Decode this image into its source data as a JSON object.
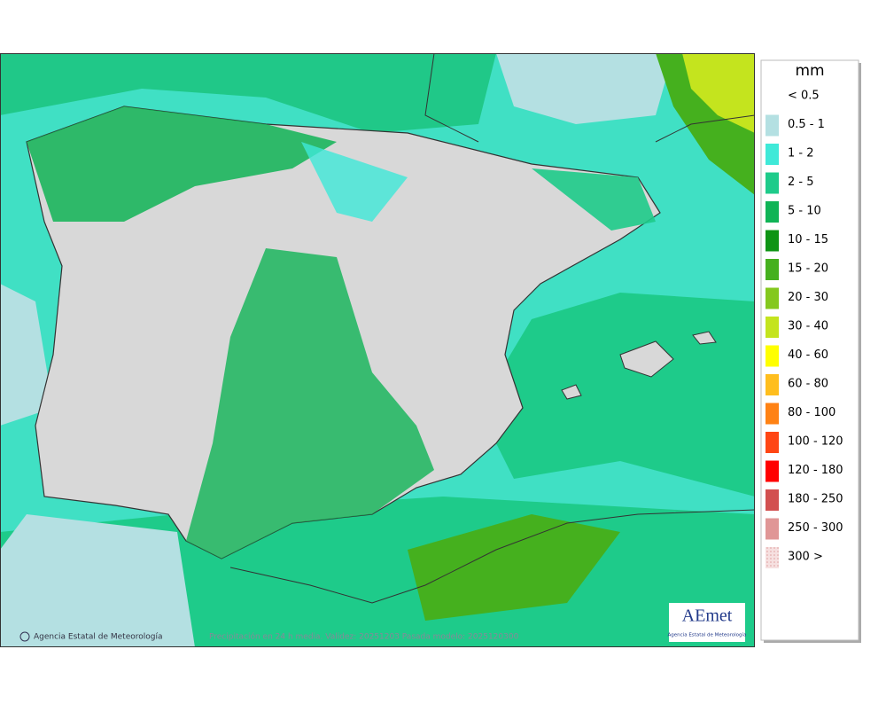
{
  "legend": {
    "title": "mm",
    "entries": [
      {
        "label": "< 0.5",
        "color": null
      },
      {
        "label": "0.5 - 1",
        "color": "#b4e0e2"
      },
      {
        "label": "1 - 2",
        "color": "#3fe9d8"
      },
      {
        "label": "2 - 5",
        "color": "#1ecb8a"
      },
      {
        "label": "5 - 10",
        "color": "#10b456"
      },
      {
        "label": "10 - 15",
        "color": "#0e9414"
      },
      {
        "label": "15 - 20",
        "color": "#45b01e"
      },
      {
        "label": "20 - 30",
        "color": "#84c81e"
      },
      {
        "label": "30 - 40",
        "color": "#c4e41e"
      },
      {
        "label": "40 - 60",
        "color": "#ffff00"
      },
      {
        "label": "60 - 80",
        "color": "#ffbe1e"
      },
      {
        "label": "80 - 100",
        "color": "#ff8214"
      },
      {
        "label": "100 - 120",
        "color": "#ff4614"
      },
      {
        "label": "120 - 180",
        "color": "#ff0000"
      },
      {
        "label": "180 - 250",
        "color": "#d25050"
      },
      {
        "label": "250 - 300",
        "color": "#e09696"
      },
      {
        "label": "300 >",
        "color": "#f2d2d2"
      }
    ]
  },
  "footer": {
    "credit": "Agencia Estatal de Meteorología",
    "caption": "Precipitación en 24 h media. Validez: 20251203 Pasada modelo: 2025120300"
  },
  "logo": {
    "name": "AEmet",
    "subtitle": "Agencia Estatal de Meteorología"
  }
}
